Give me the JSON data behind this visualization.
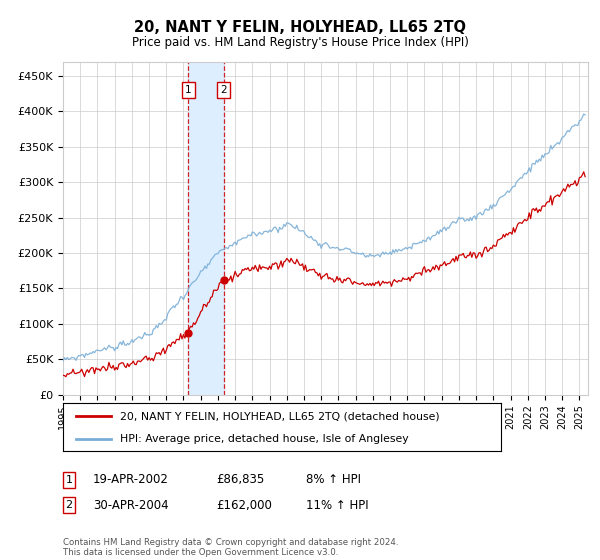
{
  "title": "20, NANT Y FELIN, HOLYHEAD, LL65 2TQ",
  "subtitle": "Price paid vs. HM Land Registry's House Price Index (HPI)",
  "ylabel_ticks": [
    "£0",
    "£50K",
    "£100K",
    "£150K",
    "£200K",
    "£250K",
    "£300K",
    "£350K",
    "£400K",
    "£450K"
  ],
  "ytick_values": [
    0,
    50000,
    100000,
    150000,
    200000,
    250000,
    300000,
    350000,
    400000,
    450000
  ],
  "ylim": [
    0,
    470000
  ],
  "xlim_start": 1995.0,
  "xlim_end": 2025.5,
  "line1_color": "#cc0000",
  "line2_color": "#7aaed6",
  "shading_color": "#ddeeff",
  "transaction1_x": 2002.29,
  "transaction1_y": 86835,
  "transaction2_x": 2004.33,
  "transaction2_y": 162000,
  "legend_line1": "20, NANT Y FELIN, HOLYHEAD, LL65 2TQ (detached house)",
  "legend_line2": "HPI: Average price, detached house, Isle of Anglesey",
  "table_row1": [
    "1",
    "19-APR-2002",
    "£86,835",
    "8% ↑ HPI"
  ],
  "table_row2": [
    "2",
    "30-APR-2004",
    "£162,000",
    "11% ↑ HPI"
  ],
  "footnote": "Contains HM Land Registry data © Crown copyright and database right 2024.\nThis data is licensed under the Open Government Licence v3.0.",
  "background_color": "#ffffff",
  "grid_color": "#cccccc"
}
